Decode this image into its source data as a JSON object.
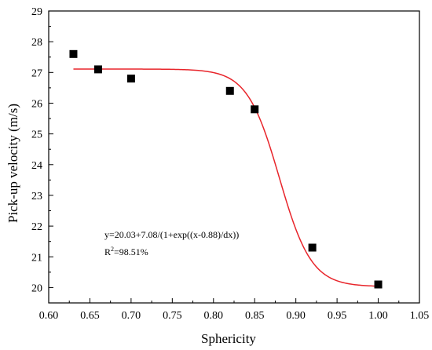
{
  "chart_data": {
    "type": "scatter",
    "xlabel": "Sphericity",
    "ylabel": "Pick-up velocity (m/s)",
    "xlim": [
      0.6,
      1.05
    ],
    "ylim": [
      19.5,
      29
    ],
    "x_ticks": [
      "0.60",
      "0.65",
      "0.70",
      "0.75",
      "0.80",
      "0.85",
      "0.90",
      "0.95",
      "1.00",
      "1.05"
    ],
    "y_ticks": [
      "20",
      "21",
      "22",
      "23",
      "24",
      "25",
      "26",
      "27",
      "28",
      "29"
    ],
    "grid": false,
    "series": [
      {
        "marker": "square",
        "color": "#000000",
        "x": [
          0.63,
          0.66,
          0.7,
          0.82,
          0.85,
          0.92,
          1.0
        ],
        "y": [
          27.6,
          27.1,
          26.8,
          26.4,
          25.8,
          21.3,
          20.1
        ]
      }
    ],
    "fit": {
      "color": "#e8252b",
      "A2": 20.03,
      "amplitude": 7.08,
      "x0": 0.88,
      "dx": 0.0195,
      "x_range": [
        0.63,
        1.0
      ]
    },
    "annotations": {
      "equation": "y=20.03+7.08/(1+exp((x-0.88)/dx))",
      "r2_prefix": "R",
      "r2_sup": "2",
      "r2_value": "=98.51%"
    }
  }
}
